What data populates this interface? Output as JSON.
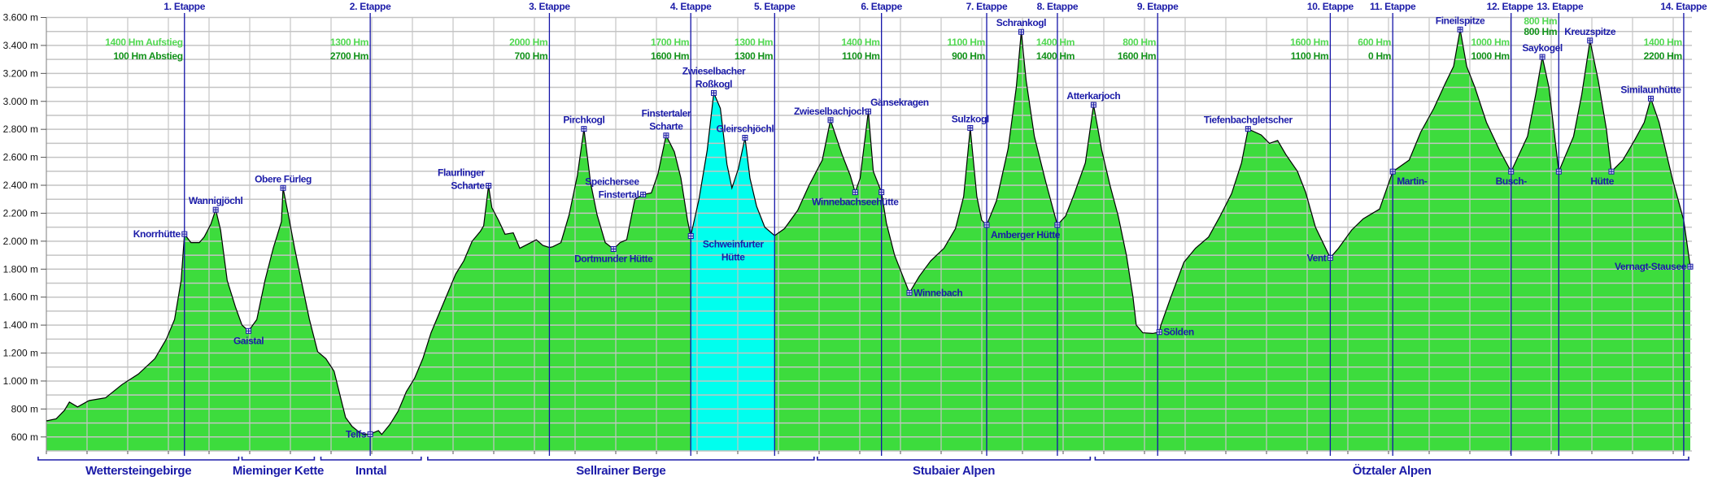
{
  "chart_data": {
    "type": "area",
    "title": "",
    "xlabel": "",
    "ylabel": "",
    "x_unit": "percent of route",
    "xlim": [
      0,
      100
    ],
    "ylim": [
      500,
      3600
    ],
    "grid": true,
    "y_tick_labels": [
      {
        "value": 3600,
        "label": "3.600 m"
      },
      {
        "value": 3400,
        "label": "3.400 m"
      },
      {
        "value": 3200,
        "label": "3.200 m"
      },
      {
        "value": 3000,
        "label": "3.000 m"
      },
      {
        "value": 2800,
        "label": "2.800 m"
      },
      {
        "value": 2600,
        "label": "2.600 m"
      },
      {
        "value": 2400,
        "label": "2.400 m"
      },
      {
        "value": 2200,
        "label": "2.200 m"
      },
      {
        "value": 2000,
        "label": "2.000 m"
      },
      {
        "value": 1800,
        "label": "1.800 m"
      },
      {
        "value": 1600,
        "label": "1.600 m"
      },
      {
        "value": 1400,
        "label": "1.400 m"
      },
      {
        "value": 1200,
        "label": "1.200 m"
      },
      {
        "value": 1000,
        "label": "1.000 m"
      },
      {
        "value": 800,
        "label": "800 m"
      },
      {
        "value": 600,
        "label": "600 m"
      }
    ],
    "colors": {
      "fill": "#3ddc3d",
      "highlight": "#00ffee",
      "outline": "#000000",
      "grid": "#c4c4c4",
      "stage_line": "#1414a8",
      "label": "#1b1ba8",
      "ascent": "#52d852",
      "descent": "#12921a"
    },
    "highlight_between_stages": [
      4,
      5
    ],
    "profile": [
      [
        0,
        715
      ],
      [
        0.6,
        730
      ],
      [
        1.1,
        790
      ],
      [
        1.4,
        850
      ],
      [
        1.9,
        815
      ],
      [
        2.6,
        860
      ],
      [
        3.6,
        880
      ],
      [
        4.6,
        975
      ],
      [
        5.6,
        1050
      ],
      [
        6.6,
        1160
      ],
      [
        7.3,
        1300
      ],
      [
        7.8,
        1440
      ],
      [
        8.2,
        1720
      ],
      [
        8.4,
        2051
      ],
      [
        8.8,
        1990
      ],
      [
        9.3,
        1990
      ],
      [
        9.6,
        2030
      ],
      [
        10.0,
        2120
      ],
      [
        10.3,
        2225
      ],
      [
        10.6,
        2080
      ],
      [
        11.0,
        1720
      ],
      [
        11.5,
        1530
      ],
      [
        11.9,
        1400
      ],
      [
        12.3,
        1358
      ],
      [
        12.8,
        1440
      ],
      [
        13.3,
        1720
      ],
      [
        13.8,
        1950
      ],
      [
        14.3,
        2140
      ],
      [
        14.4,
        2381
      ],
      [
        14.7,
        2200
      ],
      [
        15.1,
        1950
      ],
      [
        15.5,
        1720
      ],
      [
        16.0,
        1440
      ],
      [
        16.5,
        1210
      ],
      [
        17.0,
        1160
      ],
      [
        17.5,
        1070
      ],
      [
        17.9,
        880
      ],
      [
        18.2,
        740
      ],
      [
        18.6,
        675
      ],
      [
        19.0,
        638
      ],
      [
        19.3,
        620
      ],
      [
        19.7,
        620
      ],
      [
        20.2,
        645
      ],
      [
        20.4,
        618
      ],
      [
        20.9,
        690
      ],
      [
        21.4,
        785
      ],
      [
        21.9,
        925
      ],
      [
        22.4,
        1020
      ],
      [
        22.9,
        1160
      ],
      [
        23.4,
        1345
      ],
      [
        23.9,
        1485
      ],
      [
        24.4,
        1625
      ],
      [
        24.9,
        1765
      ],
      [
        25.4,
        1860
      ],
      [
        25.9,
        2000
      ],
      [
        26.4,
        2070
      ],
      [
        26.6,
        2110
      ],
      [
        26.9,
        2397
      ],
      [
        27.1,
        2240
      ],
      [
        27.5,
        2150
      ],
      [
        27.9,
        2050
      ],
      [
        28.4,
        2060
      ],
      [
        28.8,
        1950
      ],
      [
        29.3,
        1980
      ],
      [
        29.8,
        2010
      ],
      [
        30.2,
        1970
      ],
      [
        30.6,
        1955
      ],
      [
        30.8,
        1960
      ],
      [
        31.3,
        1990
      ],
      [
        31.8,
        2190
      ],
      [
        32.3,
        2470
      ],
      [
        32.7,
        2803
      ],
      [
        33.1,
        2420
      ],
      [
        33.5,
        2190
      ],
      [
        34.0,
        1990
      ],
      [
        34.5,
        1944
      ],
      [
        34.9,
        1990
      ],
      [
        35.3,
        2010
      ],
      [
        35.8,
        2300
      ],
      [
        36.3,
        2334
      ],
      [
        36.8,
        2345
      ],
      [
        37.2,
        2480
      ],
      [
        37.7,
        2756
      ],
      [
        38.2,
        2640
      ],
      [
        38.6,
        2450
      ],
      [
        39.0,
        2150
      ],
      [
        39.2,
        2037
      ],
      [
        39.7,
        2300
      ],
      [
        40.2,
        2650
      ],
      [
        40.6,
        3060
      ],
      [
        41.0,
        2950
      ],
      [
        41.4,
        2550
      ],
      [
        41.7,
        2380
      ],
      [
        42.1,
        2520
      ],
      [
        42.5,
        2740
      ],
      [
        42.8,
        2450
      ],
      [
        43.2,
        2250
      ],
      [
        43.7,
        2100
      ],
      [
        44.3,
        2040
      ],
      [
        44.9,
        2090
      ],
      [
        45.7,
        2220
      ],
      [
        46.4,
        2400
      ],
      [
        47.2,
        2580
      ],
      [
        47.7,
        2866
      ],
      [
        48.4,
        2620
      ],
      [
        48.9,
        2470
      ],
      [
        49.2,
        2350
      ],
      [
        49.5,
        2450
      ],
      [
        50.0,
        2928
      ],
      [
        50.3,
        2500
      ],
      [
        50.8,
        2350
      ],
      [
        51.1,
        2130
      ],
      [
        51.6,
        1900
      ],
      [
        52.1,
        1750
      ],
      [
        52.5,
        1631
      ],
      [
        53.1,
        1750
      ],
      [
        53.8,
        1860
      ],
      [
        54.6,
        1950
      ],
      [
        55.3,
        2090
      ],
      [
        55.8,
        2320
      ],
      [
        56.2,
        2810
      ],
      [
        56.6,
        2320
      ],
      [
        56.9,
        2150
      ],
      [
        57.2,
        2116
      ],
      [
        57.8,
        2290
      ],
      [
        58.5,
        2660
      ],
      [
        59.0,
        3100
      ],
      [
        59.3,
        3497
      ],
      [
        59.6,
        3150
      ],
      [
        60.1,
        2750
      ],
      [
        60.8,
        2420
      ],
      [
        61.5,
        2116
      ],
      [
        62.0,
        2180
      ],
      [
        62.5,
        2330
      ],
      [
        63.2,
        2560
      ],
      [
        63.7,
        2975
      ],
      [
        64.2,
        2650
      ],
      [
        64.7,
        2400
      ],
      [
        65.2,
        2180
      ],
      [
        65.7,
        1900
      ],
      [
        66.1,
        1600
      ],
      [
        66.3,
        1400
      ],
      [
        66.7,
        1345
      ],
      [
        67.3,
        1340
      ],
      [
        67.7,
        1350
      ],
      [
        67.8,
        1400
      ],
      [
        68.4,
        1600
      ],
      [
        69.2,
        1850
      ],
      [
        69.9,
        1950
      ],
      [
        70.7,
        2030
      ],
      [
        71.4,
        2180
      ],
      [
        72.1,
        2340
      ],
      [
        72.7,
        2560
      ],
      [
        73.1,
        2803
      ],
      [
        73.9,
        2760
      ],
      [
        74.4,
        2700
      ],
      [
        74.9,
        2720
      ],
      [
        75.4,
        2620
      ],
      [
        76.1,
        2500
      ],
      [
        76.6,
        2350
      ],
      [
        77.2,
        2100
      ],
      [
        78.1,
        1881
      ],
      [
        78.6,
        1950
      ],
      [
        79.4,
        2080
      ],
      [
        80.1,
        2160
      ],
      [
        81.1,
        2230
      ],
      [
        81.9,
        2498
      ],
      [
        82.9,
        2580
      ],
      [
        83.6,
        2780
      ],
      [
        84.4,
        2950
      ],
      [
        85.1,
        3130
      ],
      [
        85.6,
        3250
      ],
      [
        86.0,
        3514
      ],
      [
        86.4,
        3250
      ],
      [
        86.9,
        3100
      ],
      [
        87.6,
        2850
      ],
      [
        88.4,
        2650
      ],
      [
        89.1,
        2498
      ],
      [
        90.1,
        2750
      ],
      [
        90.6,
        3050
      ],
      [
        91.0,
        3318
      ],
      [
        91.4,
        3100
      ],
      [
        91.7,
        2800
      ],
      [
        92.0,
        2498
      ],
      [
        92.9,
        2750
      ],
      [
        93.4,
        3050
      ],
      [
        93.9,
        3435
      ],
      [
        94.4,
        3150
      ],
      [
        94.9,
        2800
      ],
      [
        95.2,
        2498
      ],
      [
        95.9,
        2580
      ],
      [
        96.6,
        2720
      ],
      [
        97.2,
        2850
      ],
      [
        97.6,
        3020
      ],
      [
        98.1,
        2850
      ],
      [
        98.9,
        2450
      ],
      [
        99.6,
        2150
      ],
      [
        100,
        1818
      ]
    ],
    "stages": [
      {
        "label": "1. Etappe",
        "x": 8.4,
        "ascent": "1400 Hm Aufstieg",
        "descent": "100 Hm Abstieg",
        "text_side": "left"
      },
      {
        "label": "2. Etappe",
        "x": 19.7,
        "ascent": "1300 Hm",
        "descent": "2700 Hm",
        "text_side": "left"
      },
      {
        "label": "3. Etappe",
        "x": 30.6,
        "ascent": "2000 Hm",
        "descent": "700 Hm",
        "text_side": "left"
      },
      {
        "label": "4. Etappe",
        "x": 39.2,
        "ascent": "1700 Hm",
        "descent": "1600 Hm",
        "text_side": "left"
      },
      {
        "label": "5. Etappe",
        "x": 44.3,
        "ascent": "1300 Hm",
        "descent": "1300 Hm",
        "text_side": "left"
      },
      {
        "label": "6. Etappe",
        "x": 50.8,
        "ascent": "1400 Hm",
        "descent": "1100 Hm",
        "text_side": "left"
      },
      {
        "label": "7. Etappe",
        "x": 57.2,
        "ascent": "1100 Hm",
        "descent": "900 Hm",
        "text_side": "left"
      },
      {
        "label": "8. Etappe",
        "x": 61.5,
        "ascent": "1400 Hm",
        "descent": "1400 Hm",
        "text_side": "right"
      },
      {
        "label": "9. Etappe",
        "x": 67.6,
        "ascent": "800 Hm",
        "descent": "1600 Hm",
        "text_side": "left"
      },
      {
        "label": "10. Etappe",
        "x": 78.1,
        "ascent": "1600 Hm",
        "descent": "1100 Hm",
        "text_side": "left"
      },
      {
        "label": "11. Etappe",
        "x": 81.9,
        "ascent": "600 Hm",
        "descent": "0 Hm",
        "text_side": "left"
      },
      {
        "label": "12. Etappe",
        "x": 89.1,
        "ascent": "1000 Hm",
        "descent": "1000 Hm",
        "text_side": "left"
      },
      {
        "label": "13. Etappe",
        "x": 92.0,
        "ascent": "800 Hm",
        "descent": "800 Hm",
        "text_side": "top"
      },
      {
        "label": "14. Etappe",
        "x": 99.6,
        "ascent": "1400 Hm",
        "descent": "2200 Hm",
        "text_side": "left"
      }
    ],
    "places": [
      {
        "lines": [
          "Knorrhütte"
        ],
        "x": 8.4,
        "elev": 2051,
        "label_pos": "left"
      },
      {
        "lines": [
          "Wannigjöchl"
        ],
        "x": 10.3,
        "elev": 2225,
        "label_pos": "above"
      },
      {
        "lines": [
          "Gaistal"
        ],
        "x": 12.3,
        "elev": 1358,
        "label_pos": "below"
      },
      {
        "lines": [
          "Obere Fürleg"
        ],
        "x": 14.4,
        "elev": 2381,
        "label_pos": "above"
      },
      {
        "lines": [
          "Telfs"
        ],
        "x": 19.7,
        "elev": 620,
        "label_pos": "left"
      },
      {
        "lines": [
          "Flaurlinger",
          "Scharte"
        ],
        "x": 26.9,
        "elev": 2397,
        "label_pos": "left"
      },
      {
        "lines": [
          "Pirchkogl"
        ],
        "x": 32.7,
        "elev": 2803,
        "label_pos": "above"
      },
      {
        "lines": [
          "Dortmunder Hütte"
        ],
        "x": 34.5,
        "elev": 1944,
        "label_pos": "below"
      },
      {
        "lines": [
          "Speichersee",
          "Finstertal"
        ],
        "x": 36.3,
        "elev": 2334,
        "label_pos": "left"
      },
      {
        "lines": [
          "Finstertaler",
          "Scharte"
        ],
        "x": 37.7,
        "elev": 2756,
        "label_pos": "above"
      },
      {
        "lines": [
          "Schweinfurter",
          "Hütte"
        ],
        "x": 39.2,
        "elev": 2037,
        "label_pos": "below-right"
      },
      {
        "lines": [
          "Zwieselbacher",
          "Roßkogl"
        ],
        "x": 40.6,
        "elev": 3060,
        "label_pos": "above"
      },
      {
        "lines": [
          "Gleirschjöchl"
        ],
        "x": 42.5,
        "elev": 2740,
        "label_pos": "above"
      },
      {
        "lines": [
          "Zwieselbachjoch"
        ],
        "x": 47.7,
        "elev": 2866,
        "label_pos": "above"
      },
      {
        "lines": [
          "Winnebachseehütte"
        ],
        "x": 49.2,
        "elev": 2350,
        "label_pos": "below"
      },
      {
        "lines": [
          "Gänsekragen"
        ],
        "x": 50.0,
        "elev": 2928,
        "label_pos": "above"
      },
      {
        "lines": [
          "Winnebach"
        ],
        "x": 52.5,
        "elev": 1631,
        "label_pos": "right"
      },
      {
        "lines": [
          "Sulzkogl"
        ],
        "x": 56.2,
        "elev": 2810,
        "label_pos": "above"
      },
      {
        "lines": [
          "Amberger Hütte"
        ],
        "x": 57.2,
        "elev": 2116,
        "label_pos": "below-right"
      },
      {
        "lines": [
          "Schrankogl"
        ],
        "x": 59.3,
        "elev": 3497,
        "label_pos": "above"
      },
      {
        "lines": [
          "Atterkarjoch"
        ],
        "x": 63.7,
        "elev": 2975,
        "label_pos": "above"
      },
      {
        "lines": [
          "Sölden"
        ],
        "x": 67.7,
        "elev": 1350,
        "label_pos": "right"
      },
      {
        "lines": [
          "Tiefenbachgletscher"
        ],
        "x": 73.1,
        "elev": 2803,
        "label_pos": "above"
      },
      {
        "lines": [
          "Vent"
        ],
        "x": 78.1,
        "elev": 1881,
        "label_pos": "left"
      },
      {
        "lines": [
          "Martin-"
        ],
        "x": 81.9,
        "elev": 2498,
        "label_pos": "below-right"
      },
      {
        "lines": [
          "Fineilspitze"
        ],
        "x": 86.0,
        "elev": 3514,
        "label_pos": "above"
      },
      {
        "lines": [
          "Busch-"
        ],
        "x": 89.1,
        "elev": 2498,
        "label_pos": "below"
      },
      {
        "lines": [
          "Saykogel"
        ],
        "x": 91.0,
        "elev": 3318,
        "label_pos": "above"
      },
      {
        "lines": [
          "Kreuzspitze"
        ],
        "x": 93.9,
        "elev": 3435,
        "label_pos": "above"
      },
      {
        "lines": [
          "Hütte"
        ],
        "x": 95.2,
        "elev": 2498,
        "label_pos": "below-left"
      },
      {
        "lines": [
          "Similaunhütte"
        ],
        "x": 97.6,
        "elev": 3020,
        "label_pos": "above"
      },
      {
        "lines": [
          "Vernagt-Stausee"
        ],
        "x": 100,
        "elev": 1818,
        "label_pos": "left"
      }
    ],
    "unlabeled_markers": [
      [
        50.8,
        2350
      ],
      [
        61.5,
        2116
      ],
      [
        92.0,
        2498
      ]
    ],
    "regions": [
      {
        "lines": [
          "Wettersteingebirge"
        ],
        "from": -0.5,
        "to": 11.7
      },
      {
        "lines": [
          "Mieminger",
          "Kette"
        ],
        "from": 11.9,
        "to": 16.3
      },
      {
        "lines": [
          "Inntal"
        ],
        "from": 16.7,
        "to": 22.8
      },
      {
        "lines": [
          "Sellrainer Berge"
        ],
        "from": 23.2,
        "to": 46.7
      },
      {
        "lines": [
          "Stubaier Alpen"
        ],
        "from": 46.9,
        "to": 63.5
      },
      {
        "lines": [
          "Ötztaler Alpen"
        ],
        "from": 63.8,
        "to": 99.9
      }
    ]
  }
}
